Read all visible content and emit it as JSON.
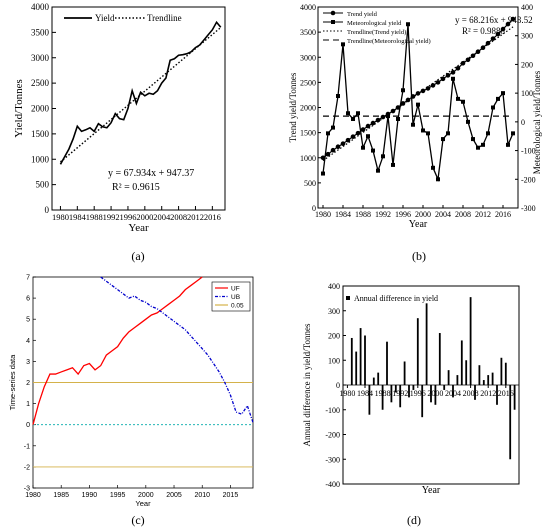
{
  "chart_data": [
    {
      "panel_label": "(a)",
      "type": "line",
      "xlabel": "Year",
      "ylabel": "Yield/Tonnes",
      "xlim": [
        1978,
        2019
      ],
      "ylim": [
        0,
        4000
      ],
      "xticks": [
        1980,
        1984,
        1988,
        1992,
        1996,
        2000,
        2004,
        2008,
        2012,
        2016
      ],
      "yticks": [
        0,
        500,
        1000,
        1500,
        2000,
        2500,
        3000,
        3500,
        4000
      ],
      "x": [
        1980,
        1981,
        1982,
        1983,
        1984,
        1985,
        1986,
        1987,
        1988,
        1989,
        1990,
        1991,
        1992,
        1993,
        1994,
        1995,
        1996,
        1997,
        1998,
        1999,
        2000,
        2001,
        2002,
        2003,
        2004,
        2005,
        2006,
        2007,
        2008,
        2009,
        2010,
        2011,
        2012,
        2013,
        2014,
        2015,
        2016,
        2017,
        2018
      ],
      "legend": [
        "Yield",
        "Trendline"
      ],
      "legend_position": "top-left",
      "series": [
        {
          "name": "Yield",
          "style": "solid",
          "values": [
            900,
            1050,
            1200,
            1400,
            1650,
            1550,
            1580,
            1620,
            1550,
            1700,
            1640,
            1620,
            1720,
            1900,
            1800,
            1780,
            2000,
            2350,
            2100,
            2320,
            2250,
            2300,
            2280,
            2350,
            2500,
            2600,
            2950,
            2980,
            3050,
            3060,
            3080,
            3120,
            3200,
            3250,
            3350,
            3450,
            3550,
            3700,
            3600
          ]
        },
        {
          "name": "Trendline",
          "style": "dotted",
          "slope": 67.934,
          "intercept": 947.37
        }
      ],
      "annotation": [
        "y = 67.934x + 947.37",
        "R² = 0.9615"
      ]
    },
    {
      "panel_label": "(b)",
      "type": "line",
      "xlabel": "Year",
      "ylabel": "Trend yield/Tonnes",
      "y2label": "Meteorological yield/Tonnes",
      "xlim": [
        1979,
        2019
      ],
      "ylim": [
        0,
        4000
      ],
      "y2lim": [
        -300,
        400
      ],
      "xticks": [
        1980,
        1984,
        1988,
        1992,
        1996,
        2000,
        2004,
        2008,
        2012,
        2016
      ],
      "yticks": [
        0,
        500,
        1000,
        1500,
        2000,
        2500,
        3000,
        3500,
        4000
      ],
      "y2ticks": [
        -300,
        -200,
        -100,
        0,
        100,
        200,
        300,
        400
      ],
      "x": [
        1980,
        1981,
        1982,
        1983,
        1984,
        1985,
        1986,
        1987,
        1988,
        1989,
        1990,
        1991,
        1992,
        1993,
        1994,
        1995,
        1996,
        1997,
        1998,
        1999,
        2000,
        2001,
        2002,
        2003,
        2004,
        2005,
        2006,
        2007,
        2008,
        2009,
        2010,
        2011,
        2012,
        2013,
        2014,
        2015,
        2016,
        2017,
        2018
      ],
      "legend": [
        "Trend yield",
        "Meteorological yield",
        "Trendline(Trend yield)",
        "Trendline(Meteorological yield)"
      ],
      "legend_position": "top-left",
      "series": [
        {
          "name": "Trend yield",
          "axis": "left",
          "marker": "circle",
          "values": [
            1000,
            1070,
            1150,
            1220,
            1280,
            1350,
            1420,
            1490,
            1560,
            1630,
            1690,
            1750,
            1810,
            1870,
            1930,
            2000,
            2080,
            2150,
            2220,
            2280,
            2330,
            2380,
            2440,
            2500,
            2570,
            2640,
            2700,
            2780,
            2880,
            2950,
            3030,
            3110,
            3190,
            3280,
            3370,
            3460,
            3560,
            3660,
            3760
          ]
        },
        {
          "name": "Meteorological yield",
          "axis": "right",
          "marker": "square",
          "values": [
            -180,
            -40,
            -20,
            90,
            270,
            30,
            10,
            30,
            -90,
            -50,
            -100,
            -170,
            -120,
            20,
            -150,
            10,
            110,
            340,
            -10,
            60,
            -30,
            -40,
            -160,
            -200,
            -60,
            -40,
            150,
            80,
            70,
            0,
            -60,
            -90,
            -80,
            -40,
            50,
            80,
            100,
            -80,
            -40
          ]
        },
        {
          "name": "Trendline(Trend yield)",
          "axis": "left",
          "style": "dotted",
          "slope": 68.216,
          "intercept": 943.52
        },
        {
          "name": "Trendline(Meteorological yield)",
          "axis": "right",
          "style": "dashed",
          "value": 20
        }
      ],
      "annotation": [
        "y = 68.216x + 943.52",
        "R² = 0.9888"
      ]
    },
    {
      "panel_label": "(c)",
      "type": "line",
      "xlabel": "Year",
      "ylabel": "Time-series data",
      "xlim": [
        1980,
        2019
      ],
      "ylim": [
        -3,
        7
      ],
      "xticks": [
        1980,
        1985,
        1990,
        1995,
        2000,
        2005,
        2010,
        2015
      ],
      "yticks": [
        -3,
        -2,
        -1,
        0,
        1,
        2,
        3,
        4,
        5,
        6,
        7
      ],
      "legend": [
        "UF",
        "UB",
        "0.05"
      ],
      "legend_position": "top-right",
      "series": [
        {
          "name": "UF",
          "color": "#ff0000",
          "x": [
            1980,
            1981,
            1982,
            1983,
            1984,
            1985,
            1986,
            1987,
            1988,
            1989,
            1990,
            1991,
            1992,
            1993,
            1994,
            1995,
            1996,
            1997,
            1998,
            1999,
            2000,
            2001,
            2002,
            2003,
            2004,
            2005,
            2006,
            2007,
            2008,
            2009,
            2010
          ],
          "values": [
            0,
            1.0,
            1.8,
            2.4,
            2.4,
            2.5,
            2.6,
            2.7,
            2.4,
            2.8,
            2.9,
            2.6,
            2.8,
            3.3,
            3.5,
            3.7,
            4.1,
            4.4,
            4.6,
            4.8,
            5.0,
            5.2,
            5.3,
            5.5,
            5.7,
            5.9,
            6.1,
            6.4,
            6.6,
            6.8,
            7.0
          ]
        },
        {
          "name": "UB",
          "color": "#0000cc",
          "style": "dash-dot",
          "x": [
            1992,
            1993,
            1994,
            1995,
            1996,
            1997,
            1998,
            1999,
            2000,
            2001,
            2002,
            2003,
            2004,
            2005,
            2006,
            2007,
            2008,
            2009,
            2010,
            2011,
            2012,
            2013,
            2014,
            2015,
            2016,
            2017,
            2018,
            2019
          ],
          "values": [
            7.0,
            6.8,
            6.6,
            6.4,
            6.2,
            6.0,
            6.1,
            5.9,
            5.8,
            5.6,
            5.5,
            5.3,
            5.1,
            4.9,
            4.7,
            4.5,
            4.2,
            3.9,
            3.6,
            3.3,
            2.9,
            2.5,
            2.0,
            1.4,
            0.6,
            0.5,
            0.9,
            0.1
          ]
        },
        {
          "name": "0.05",
          "color": "#d4b24a",
          "values_const": [
            2,
            -2
          ]
        },
        {
          "name": "zero",
          "color": "#00aaaa",
          "style": "dashed",
          "values_const": [
            0
          ]
        }
      ]
    },
    {
      "panel_label": "(d)",
      "type": "bar",
      "xlabel": "Year",
      "ylabel": "Annual difference in yield/Tonnes",
      "xlim": [
        1979,
        2019
      ],
      "ylim": [
        -400,
        400
      ],
      "xticks": [
        1980,
        1984,
        1988,
        1992,
        1996,
        2000,
        2004,
        2008,
        2012,
        2016
      ],
      "yticks": [
        -400,
        -300,
        -200,
        -100,
        0,
        100,
        200,
        300,
        400
      ],
      "legend": [
        "Annual difference in yield"
      ],
      "legend_position": "top-left",
      "x": [
        1981,
        1982,
        1983,
        1984,
        1985,
        1986,
        1987,
        1988,
        1989,
        1990,
        1991,
        1992,
        1993,
        1994,
        1995,
        1996,
        1997,
        1998,
        1999,
        2000,
        2001,
        2002,
        2003,
        2004,
        2005,
        2006,
        2007,
        2008,
        2009,
        2010,
        2011,
        2012,
        2013,
        2014,
        2015,
        2016,
        2017,
        2018
      ],
      "values": [
        190,
        135,
        230,
        200,
        -120,
        30,
        50,
        -100,
        175,
        -70,
        -30,
        -90,
        95,
        -50,
        -20,
        270,
        -130,
        330,
        -70,
        -80,
        210,
        -20,
        60,
        -50,
        40,
        180,
        100,
        355,
        -60,
        80,
        20,
        40,
        50,
        -80,
        110,
        90,
        -300,
        -100
      ]
    }
  ]
}
